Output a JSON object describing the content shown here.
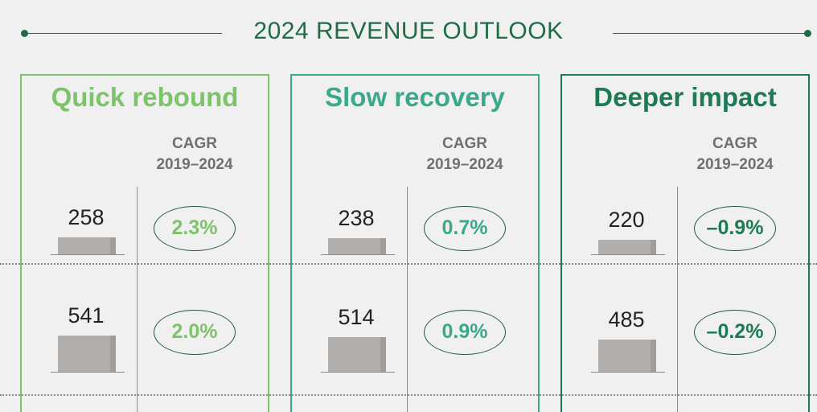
{
  "title": "2024 REVENUE OUTLOOK",
  "colors": {
    "title": "#1f6b45",
    "bar": "#b2aeac"
  },
  "chart_data": {
    "type": "bar",
    "title": "2024 REVENUE OUTLOOK",
    "cagr_label": "CAGR",
    "cagr_period": "2019–2024",
    "scenarios": [
      {
        "name": "Quick rebound",
        "color": "#7dc36a",
        "values": [
          258,
          541
        ],
        "cagr": [
          "2.3%",
          "2.0%"
        ]
      },
      {
        "name": "Slow recovery",
        "color": "#3aa98a",
        "values": [
          238,
          514
        ],
        "cagr": [
          "0.7%",
          "0.9%"
        ]
      },
      {
        "name": "Deeper impact",
        "color": "#1e7a55",
        "values": [
          220,
          485
        ],
        "cagr": [
          "–0.9%",
          "–0.2%"
        ]
      }
    ]
  }
}
